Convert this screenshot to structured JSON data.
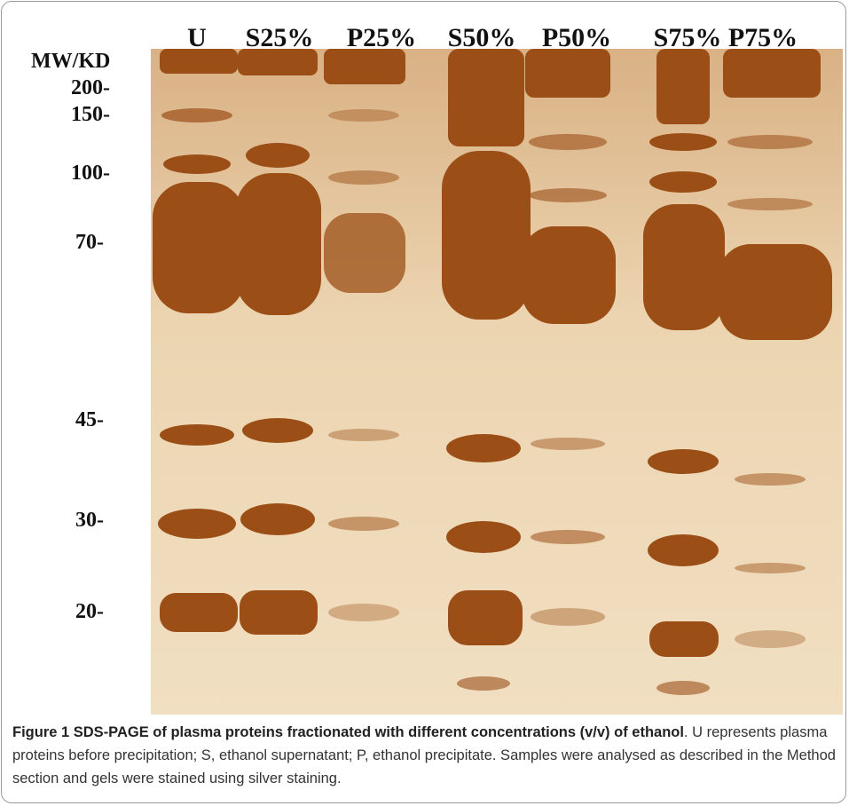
{
  "figure": {
    "mw_label": "MW/KD",
    "markers": [
      "200-",
      "150-",
      "100-",
      "70-",
      "45-",
      "30-",
      "20-"
    ],
    "lane_labels": [
      "U",
      "S25%",
      "P25%",
      "S50%",
      "P50%",
      "S75%",
      "P75%"
    ],
    "caption": {
      "title": "Figure 1 SDS-PAGE of plasma proteins fractionated with different concentrations (v/v) of ethanol",
      "text": ". U represents plasma proteins before precipitation; S, ethanol supernatant; P, ethanol precipitate. Samples were analysed as described in the Method section and gels were stained using silver staining."
    }
  }
}
